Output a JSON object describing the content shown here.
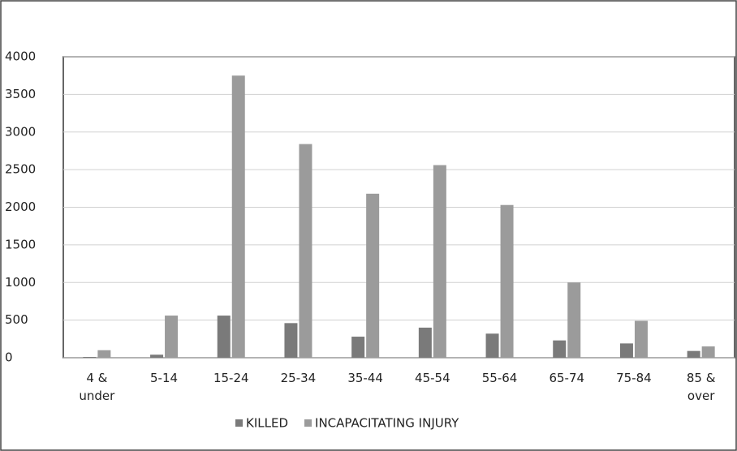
{
  "chart_data": {
    "type": "bar",
    "categories": [
      "4 & under",
      "5-14",
      "15-24",
      "25-34",
      "35-44",
      "45-54",
      "55-64",
      "65-74",
      "75-84",
      "85 & over"
    ],
    "series": [
      {
        "name": "KILLED",
        "color": "#7a7a7a",
        "values": [
          10,
          40,
          560,
          460,
          280,
          400,
          320,
          230,
          190,
          90
        ]
      },
      {
        "name": "INCAPACITATING INJURY",
        "color": "#9b9b9b",
        "values": [
          100,
          560,
          3750,
          2840,
          2180,
          2560,
          2030,
          1000,
          490,
          150
        ]
      }
    ],
    "ylim": [
      0,
      4000
    ],
    "yticks": [
      0,
      500,
      1000,
      1500,
      2000,
      2500,
      3000,
      3500,
      4000
    ],
    "grid": true,
    "legend": "bottom"
  }
}
